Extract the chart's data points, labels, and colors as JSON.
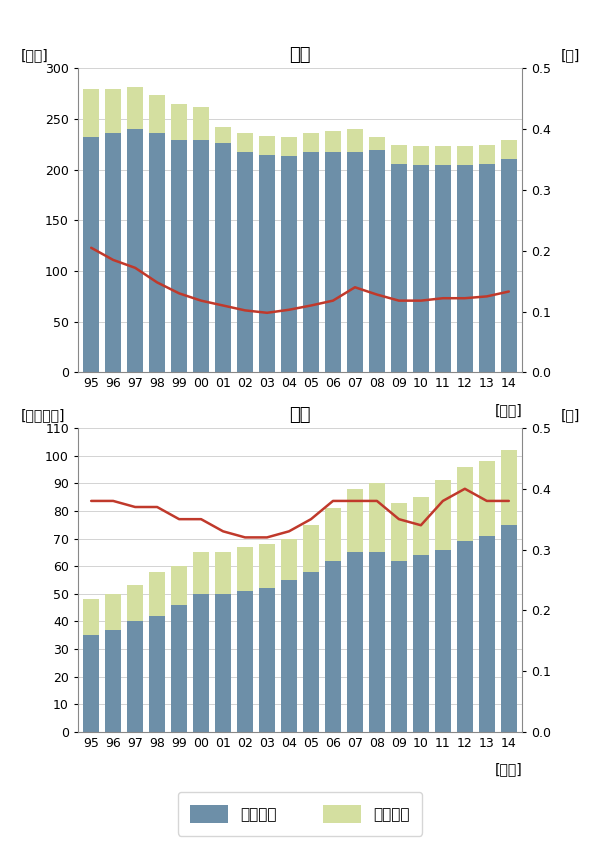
{
  "years": [
    "95",
    "96",
    "97",
    "98",
    "99",
    "00",
    "01",
    "02",
    "03",
    "04",
    "05",
    "06",
    "07",
    "08",
    "09",
    "10",
    "11",
    "12",
    "13",
    "14"
  ],
  "japan": {
    "title": "日本",
    "ylabel_left": "[兆円]",
    "ylabel_right": "[倍]",
    "xlabel": "[年末]",
    "labor": [
      232,
      236,
      240,
      236,
      229,
      229,
      226,
      218,
      215,
      214,
      218,
      218,
      218,
      220,
      206,
      205,
      205,
      205,
      206,
      211
    ],
    "property": [
      48,
      44,
      42,
      38,
      36,
      33,
      16,
      18,
      18,
      18,
      18,
      20,
      22,
      12,
      18,
      18,
      18,
      18,
      18,
      18
    ],
    "ratio": [
      0.205,
      0.185,
      0.172,
      0.148,
      0.13,
      0.118,
      0.11,
      0.102,
      0.098,
      0.103,
      0.11,
      0.118,
      0.14,
      0.128,
      0.118,
      0.118,
      0.122,
      0.122,
      0.125,
      0.133
    ],
    "ylim_left": [
      0,
      300
    ],
    "ylim_right": [
      0.0,
      0.5
    ],
    "yticks_left": [
      0,
      50,
      100,
      150,
      200,
      250,
      300
    ],
    "yticks_right": [
      0.0,
      0.1,
      0.2,
      0.3,
      0.4,
      0.5
    ]
  },
  "usa": {
    "title": "米国",
    "ylabel_left": "[千億ドル]",
    "ylabel_right": "[倍]",
    "xlabel": "[年末]",
    "labor": [
      35,
      37,
      40,
      42,
      46,
      50,
      50,
      51,
      52,
      55,
      58,
      62,
      65,
      65,
      62,
      64,
      66,
      69,
      71,
      75
    ],
    "property": [
      13,
      13,
      13,
      16,
      14,
      15,
      15,
      16,
      16,
      15,
      17,
      19,
      23,
      25,
      21,
      21,
      25,
      27,
      27,
      27
    ],
    "ratio": [
      0.38,
      0.38,
      0.37,
      0.37,
      0.35,
      0.35,
      0.33,
      0.32,
      0.32,
      0.33,
      0.35,
      0.38,
      0.38,
      0.38,
      0.35,
      0.34,
      0.38,
      0.4,
      0.38,
      0.38
    ],
    "ylim_left": [
      0,
      110
    ],
    "ylim_right": [
      0.0,
      0.5
    ],
    "yticks_left": [
      0,
      10,
      20,
      30,
      40,
      50,
      60,
      70,
      80,
      90,
      100,
      110
    ],
    "yticks_right": [
      0.0,
      0.1,
      0.2,
      0.3,
      0.4,
      0.5
    ]
  },
  "bar_color_labor": "#6d8fa8",
  "bar_color_property": "#d4dfa0",
  "line_color": "#c0392b",
  "legend_labels": [
    "勤労所得",
    "財産所得"
  ],
  "bg_color": "#ffffff",
  "title_fontsize": 13,
  "label_fontsize": 10,
  "tick_fontsize": 9,
  "legend_fontsize": 11
}
